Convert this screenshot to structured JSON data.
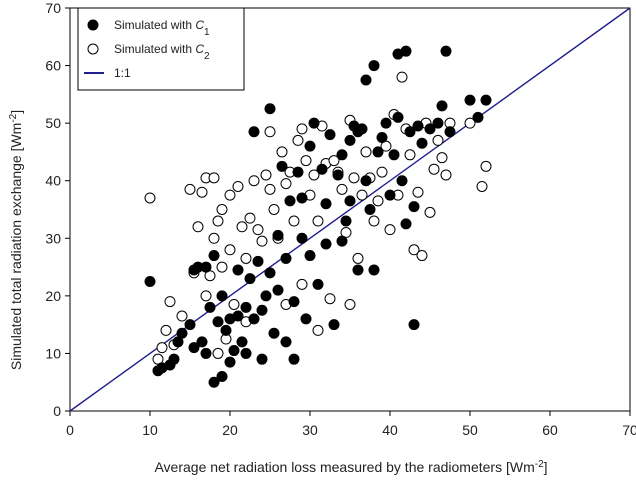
{
  "chart_data": {
    "type": "scatter",
    "xlabel_text": "Average net radiation loss measured by the radiometers [Wm",
    "xlabel_unit_exp": "-2",
    "xlabel_close": "]",
    "ylabel_text": "Simulated total radiation exchange [Wm",
    "ylabel_unit_exp": "-2",
    "ylabel_close": "]",
    "xlim": [
      0,
      70
    ],
    "ylim": [
      0,
      70
    ],
    "xticks": [
      0,
      10,
      20,
      30,
      40,
      50,
      60,
      70
    ],
    "yticks": [
      0,
      10,
      20,
      30,
      40,
      50,
      60,
      70
    ],
    "grid": false,
    "legend_position": "top-left",
    "legend": {
      "c1_prefix": "Simulated with ",
      "c1_var": "C",
      "c1_sub": "1",
      "c2_prefix": "Simulated with ",
      "c2_var": "C",
      "c2_sub": "2",
      "line_label": "1:1"
    },
    "colors": {
      "c1_fill": "#000000",
      "c2_fill": "#ffffff",
      "marker_stroke": "#000000",
      "line": "#1f1f8f",
      "axis": "#000000"
    },
    "reference_line": {
      "name": "1:1",
      "x": [
        0,
        70
      ],
      "y": [
        0,
        70
      ]
    },
    "series": [
      {
        "name": "Simulated with C1",
        "marker": "filled-circle",
        "points": [
          [
            10,
            22.5
          ],
          [
            11,
            7
          ],
          [
            11.5,
            7.5
          ],
          [
            12.5,
            8
          ],
          [
            13,
            9
          ],
          [
            13.5,
            12
          ],
          [
            14,
            13.5
          ],
          [
            15,
            15
          ],
          [
            15.5,
            24.5
          ],
          [
            15.5,
            11
          ],
          [
            16,
            25
          ],
          [
            16.5,
            12
          ],
          [
            17,
            10
          ],
          [
            17,
            25
          ],
          [
            17.5,
            18
          ],
          [
            18,
            5
          ],
          [
            18,
            27
          ],
          [
            18.5,
            15.5
          ],
          [
            19,
            6
          ],
          [
            19,
            20
          ],
          [
            19.5,
            14
          ],
          [
            20,
            8.5
          ],
          [
            20,
            16
          ],
          [
            20.5,
            10.5
          ],
          [
            21,
            16.5
          ],
          [
            21,
            24.5
          ],
          [
            21.5,
            12
          ],
          [
            22,
            18
          ],
          [
            22,
            10
          ],
          [
            22.5,
            23
          ],
          [
            23,
            48.5
          ],
          [
            23,
            16
          ],
          [
            23.5,
            26
          ],
          [
            24,
            9
          ],
          [
            24,
            17.5
          ],
          [
            24.5,
            20
          ],
          [
            25,
            52.5
          ],
          [
            25,
            24
          ],
          [
            25.5,
            13.5
          ],
          [
            26,
            30.5
          ],
          [
            26,
            21
          ],
          [
            26.5,
            42.5
          ],
          [
            27,
            12
          ],
          [
            27,
            26.5
          ],
          [
            27.5,
            36.5
          ],
          [
            28,
            9
          ],
          [
            28,
            19
          ],
          [
            28.5,
            41.5
          ],
          [
            29,
            30
          ],
          [
            29,
            37
          ],
          [
            29.5,
            16
          ],
          [
            30,
            27
          ],
          [
            30,
            46
          ],
          [
            30.5,
            50
          ],
          [
            31,
            22
          ],
          [
            31.5,
            42
          ],
          [
            32,
            36
          ],
          [
            32,
            29
          ],
          [
            32.5,
            48
          ],
          [
            33,
            15
          ],
          [
            33.5,
            41
          ],
          [
            34,
            44.5
          ],
          [
            34,
            29.5
          ],
          [
            34.5,
            33
          ],
          [
            35,
            36.5
          ],
          [
            35,
            47
          ],
          [
            35.5,
            49.5
          ],
          [
            36,
            24.5
          ],
          [
            36,
            48.5
          ],
          [
            36.5,
            49
          ],
          [
            37,
            40
          ],
          [
            37,
            57.5
          ],
          [
            37.5,
            35
          ],
          [
            38,
            60
          ],
          [
            38,
            24.5
          ],
          [
            38.5,
            45
          ],
          [
            39,
            47.5
          ],
          [
            39.5,
            50
          ],
          [
            40,
            37.5
          ],
          [
            40.5,
            44.5
          ],
          [
            41,
            62
          ],
          [
            41,
            51
          ],
          [
            41.5,
            40
          ],
          [
            42,
            62.5
          ],
          [
            42,
            32.5
          ],
          [
            42.5,
            48.5
          ],
          [
            43,
            15
          ],
          [
            43,
            35.5
          ],
          [
            43.5,
            49.5
          ],
          [
            44,
            46.5
          ],
          [
            45,
            49
          ],
          [
            46,
            50
          ],
          [
            46.5,
            53
          ],
          [
            47,
            62.5
          ],
          [
            47.5,
            48.5
          ],
          [
            50,
            54
          ],
          [
            51,
            51
          ],
          [
            52,
            54
          ]
        ]
      },
      {
        "name": "Simulated with C2",
        "marker": "open-circle",
        "points": [
          [
            10,
            37
          ],
          [
            11,
            9
          ],
          [
            11.5,
            11
          ],
          [
            12,
            14
          ],
          [
            12.5,
            19
          ],
          [
            13,
            11.5
          ],
          [
            14,
            16.5
          ],
          [
            15,
            38.5
          ],
          [
            15.5,
            24
          ],
          [
            16,
            32
          ],
          [
            16.5,
            38
          ],
          [
            17,
            20
          ],
          [
            17,
            40.5
          ],
          [
            17.5,
            23.5
          ],
          [
            18,
            30
          ],
          [
            18,
            40.5
          ],
          [
            18.5,
            10
          ],
          [
            18.5,
            33
          ],
          [
            19,
            25
          ],
          [
            19,
            35
          ],
          [
            19.5,
            12.5
          ],
          [
            20,
            28
          ],
          [
            20,
            37.5
          ],
          [
            20.5,
            18.5
          ],
          [
            21,
            39
          ],
          [
            21.5,
            32
          ],
          [
            22,
            26.5
          ],
          [
            22,
            15.5
          ],
          [
            22.5,
            33.5
          ],
          [
            23,
            40
          ],
          [
            23.5,
            31.5
          ],
          [
            24,
            29.5
          ],
          [
            24.5,
            41
          ],
          [
            25,
            48.5
          ],
          [
            25,
            38.5
          ],
          [
            25.5,
            35
          ],
          [
            26,
            30
          ],
          [
            26.5,
            45
          ],
          [
            27,
            39.5
          ],
          [
            27,
            18.5
          ],
          [
            27.5,
            41.5
          ],
          [
            28,
            33
          ],
          [
            28.5,
            47
          ],
          [
            29,
            49
          ],
          [
            29,
            22
          ],
          [
            29.5,
            43.5
          ],
          [
            30,
            37.5
          ],
          [
            30.5,
            41
          ],
          [
            31,
            33
          ],
          [
            31,
            14
          ],
          [
            31.5,
            49.5
          ],
          [
            32,
            43
          ],
          [
            32.5,
            19.5
          ],
          [
            33,
            43.5
          ],
          [
            33.5,
            41.5
          ],
          [
            34,
            38.5
          ],
          [
            34.5,
            31
          ],
          [
            35,
            18.5
          ],
          [
            35,
            50.5
          ],
          [
            35.5,
            40.5
          ],
          [
            36,
            26.5
          ],
          [
            36.5,
            37.5
          ],
          [
            37,
            45
          ],
          [
            37.5,
            40.5
          ],
          [
            38,
            33
          ],
          [
            38.5,
            36.5
          ],
          [
            39,
            41.5
          ],
          [
            39.5,
            46
          ],
          [
            40,
            31.5
          ],
          [
            40.5,
            51.5
          ],
          [
            41,
            37.5
          ],
          [
            41.5,
            58
          ],
          [
            42,
            49
          ],
          [
            42.5,
            44.5
          ],
          [
            43,
            28
          ],
          [
            43.5,
            38
          ],
          [
            44,
            27
          ],
          [
            44.5,
            50
          ],
          [
            45,
            34.5
          ],
          [
            45.5,
            42
          ],
          [
            46,
            47
          ],
          [
            46.5,
            44
          ],
          [
            47,
            41
          ],
          [
            47.5,
            50
          ],
          [
            50,
            50
          ],
          [
            51.5,
            39
          ],
          [
            52,
            42.5
          ]
        ]
      }
    ]
  }
}
